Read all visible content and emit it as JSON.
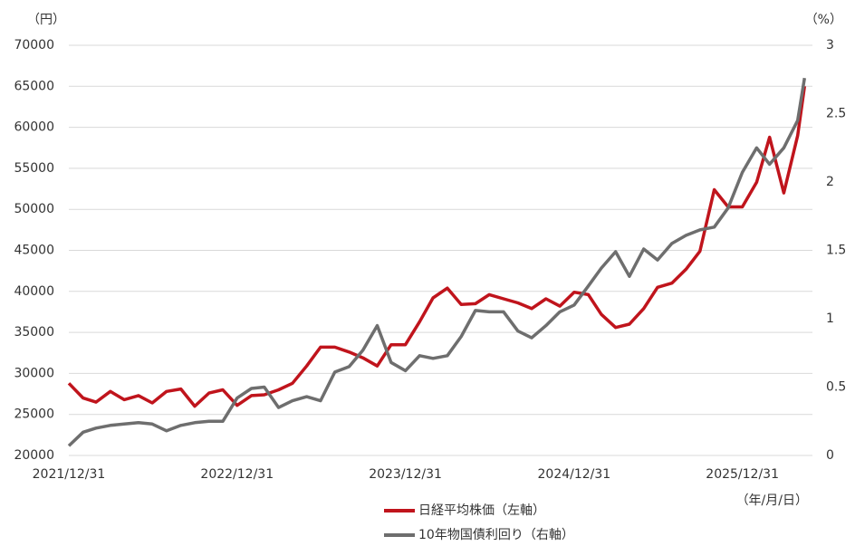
{
  "chart_data": {
    "type": "line",
    "y_axis_label": "（円）",
    "y2_axis_label": "（%）",
    "x_axis_label": "（年/月/日）",
    "x": [
      "2021/12/31",
      "2022/01/31",
      "2022/02/28",
      "2022/03/31",
      "2022/04/30",
      "2022/05/31",
      "2022/06/30",
      "2022/07/31",
      "2022/08/31",
      "2022/09/30",
      "2022/10/31",
      "2022/11/30",
      "2022/12/31",
      "2023/01/31",
      "2023/02/28",
      "2023/03/31",
      "2023/04/30",
      "2023/05/31",
      "2023/06/30",
      "2023/07/31",
      "2023/08/31",
      "2023/09/30",
      "2023/10/31",
      "2023/11/30",
      "2023/12/31",
      "2024/01/31",
      "2024/02/29",
      "2024/03/31",
      "2024/04/30",
      "2024/05/31",
      "2024/06/30",
      "2024/07/31",
      "2024/08/31",
      "2024/09/30",
      "2024/10/31",
      "2024/11/30",
      "2024/12/31",
      "2025/01/31",
      "2025/02/28",
      "2025/03/31",
      "2025/04/30",
      "2025/05/31",
      "2025/06/30",
      "2025/07/31",
      "2025/08/31",
      "2025/09/30",
      "2025/10/31",
      "2025/11/30",
      "2025/12/31",
      "2026/01/31",
      "2026/02/28",
      "2026/03/31",
      "2026/04/30",
      "2026/05/15"
    ],
    "series": [
      {
        "name": "日経平均株価（左軸）",
        "color": "#c0141c",
        "values": [
          28800,
          27000,
          26500,
          27800,
          26800,
          27300,
          26400,
          27800,
          28100,
          26000,
          27600,
          28000,
          26100,
          27300,
          27400,
          28000,
          28800,
          30900,
          33200,
          33200,
          32600,
          31900,
          30900,
          33500,
          33500,
          36300,
          39200,
          40400,
          38400,
          38500,
          39600,
          39100,
          38600,
          37900,
          39100,
          38200,
          39900,
          39600,
          37200,
          35600,
          36000,
          37900,
          40500,
          41000,
          42700,
          44900,
          52400,
          50300,
          50300,
          53300,
          58800,
          52000,
          59000,
          65000
        ]
      },
      {
        "name": "10年物国債利回り（右軸）",
        "color": "#6e6e6e",
        "axis": "y2",
        "values": [
          0.07,
          0.17,
          0.2,
          0.22,
          0.23,
          0.24,
          0.23,
          0.18,
          0.22,
          0.24,
          0.25,
          0.25,
          0.42,
          0.49,
          0.5,
          0.35,
          0.4,
          0.43,
          0.4,
          0.61,
          0.65,
          0.77,
          0.95,
          0.68,
          0.62,
          0.73,
          0.71,
          0.73,
          0.87,
          1.06,
          1.05,
          1.05,
          0.91,
          0.86,
          0.95,
          1.05,
          1.1,
          1.24,
          1.37,
          1.49,
          1.31,
          1.51,
          1.43,
          1.55,
          1.61,
          1.65,
          1.67,
          1.81,
          2.07,
          2.25,
          2.13,
          2.25,
          2.45,
          2.76
        ]
      }
    ],
    "xlim": [
      "2021/12/31",
      "2026/06/01"
    ],
    "xticks": [
      "2021/12/31",
      "2022/12/31",
      "2023/12/31",
      "2024/12/31",
      "2025/12/31"
    ],
    "ylim": [
      20000,
      70000
    ],
    "yticks": [
      20000,
      25000,
      30000,
      35000,
      40000,
      45000,
      50000,
      55000,
      60000,
      65000,
      70000
    ],
    "y2lim": [
      0,
      3
    ],
    "y2ticks": [
      0,
      0.5,
      1,
      1.5,
      2,
      2.5,
      3
    ],
    "grid": true
  }
}
